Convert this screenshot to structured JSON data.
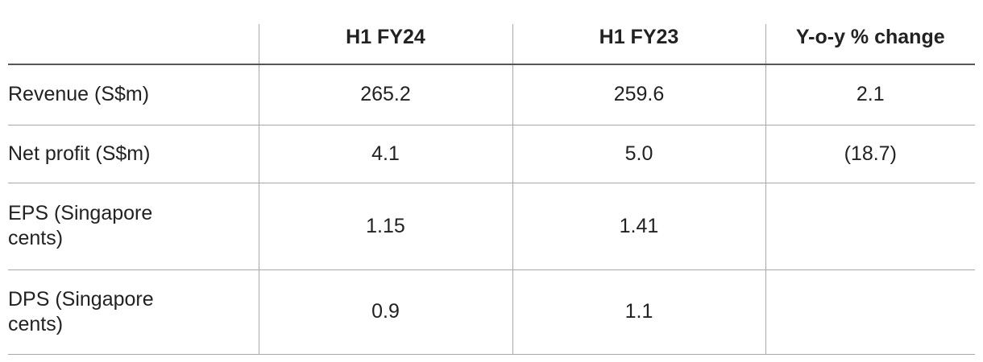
{
  "table": {
    "header": [
      "H1 FY24",
      "H1 FY23",
      "Y-o-y % change"
    ],
    "rows": [
      [
        "Revenue (S$m)",
        "265.2",
        "259.6",
        "2.1"
      ],
      [
        "Net profit (S$m)",
        "4.1",
        "5.0",
        "(18.7)"
      ],
      [
        "EPS (Singapore cents)",
        "1.15",
        "1.41"
      ],
      [
        "DPS (Singapore cents)",
        "0.9",
        "1.1"
      ]
    ]
  }
}
